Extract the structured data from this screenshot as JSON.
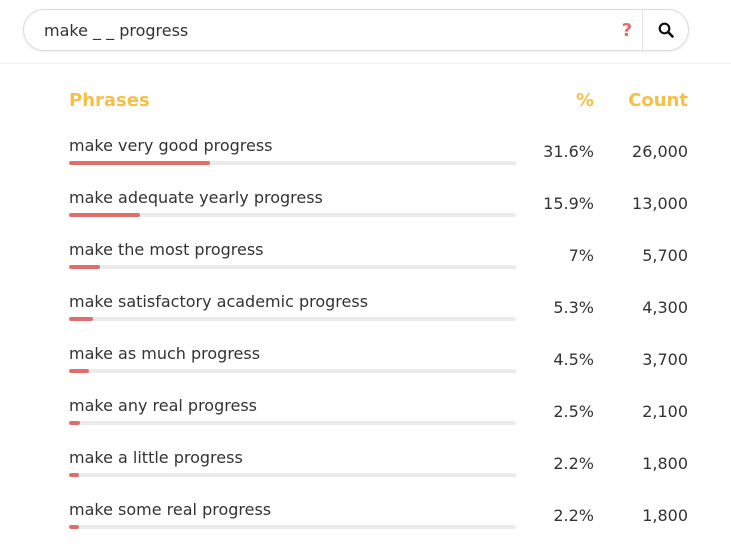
{
  "colors": {
    "accent": "#f5bf48",
    "bar_fill": "#e06c6c",
    "help_icon": "#e06c6c",
    "bar_track": "#ebebeb"
  },
  "search": {
    "query": "make _ _ progress",
    "help_icon": "question-mark",
    "help_label": "?",
    "search_icon": "magnifier"
  },
  "table": {
    "headers": {
      "phrase": "Phrases",
      "percent": "%",
      "count": "Count"
    },
    "rows": [
      {
        "phrase": "make very good progress",
        "percent": "31.6%",
        "count": "26,000",
        "share": 0.316
      },
      {
        "phrase": "make adequate yearly progress",
        "percent": "15.9%",
        "count": "13,000",
        "share": 0.159
      },
      {
        "phrase": "make the most progress",
        "percent": "7%",
        "count": "5,700",
        "share": 0.07
      },
      {
        "phrase": "make satisfactory academic progress",
        "percent": "5.3%",
        "count": "4,300",
        "share": 0.053
      },
      {
        "phrase": "make as much progress",
        "percent": "4.5%",
        "count": "3,700",
        "share": 0.045
      },
      {
        "phrase": "make any real progress",
        "percent": "2.5%",
        "count": "2,100",
        "share": 0.025
      },
      {
        "phrase": "make a little progress",
        "percent": "2.2%",
        "count": "1,800",
        "share": 0.022
      },
      {
        "phrase": "make some real progress",
        "percent": "2.2%",
        "count": "1,800",
        "share": 0.022
      }
    ]
  }
}
